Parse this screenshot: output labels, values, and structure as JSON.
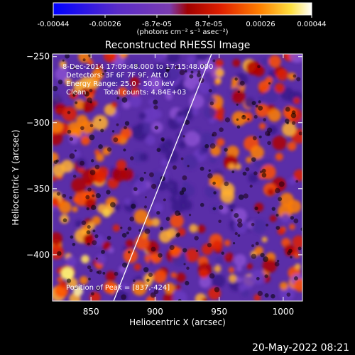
{
  "colorbar": {
    "ticks": [
      "-0.00044",
      "-0.00026",
      "-8.7e-05",
      "8.7e-05",
      "0.00026",
      "0.00044"
    ],
    "unit_label": "(photons cm⁻² s⁻¹ asec⁻²)"
  },
  "plot": {
    "title": "Reconstructed RHESSI Image",
    "xlabel": "Heliocentric X (arcsec)",
    "ylabel": "Heliocentric Y (arcsec)",
    "xticks": [
      "850",
      "900",
      "950",
      "1000"
    ],
    "yticks": [
      "-250",
      "-300",
      "-350",
      "-400"
    ],
    "xlim": [
      820,
      1015
    ],
    "ylim": [
      -435,
      -248
    ]
  },
  "annotations": {
    "time_range": "8-Dec-2014 17:09:48.000 to 17:15:48.000",
    "detectors": "Detectors: 3F 6F 7F 9F, Att 0",
    "energy": "Energy Range: 25.0 - 50.0 keV",
    "method": "Clean",
    "counts": "Total counts: 4.84E+03",
    "peak": "Position of Peak = [837,-424]"
  },
  "footer": {
    "timestamp": "20-May-2022 08:21"
  },
  "colors": {
    "background": "#000000",
    "colormap": [
      "#0000ff",
      "#5a2cc8",
      "#7a3cb0",
      "#c00000",
      "#ff3000",
      "#ffa000",
      "#ffff60",
      "#ffffff"
    ]
  }
}
